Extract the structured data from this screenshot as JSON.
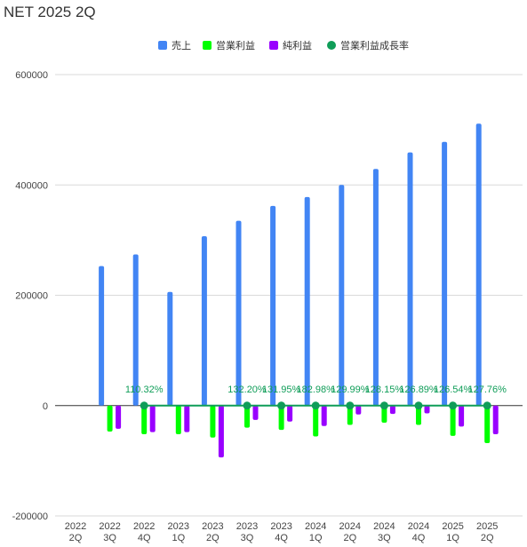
{
  "chart_data": {
    "type": "bar",
    "title": "NET 2025 2Q",
    "categories": [
      [
        "2022",
        "2Q"
      ],
      [
        "2022",
        "3Q"
      ],
      [
        "2022",
        "4Q"
      ],
      [
        "2023",
        "1Q"
      ],
      [
        "2023",
        "2Q"
      ],
      [
        "2023",
        "3Q"
      ],
      [
        "2023",
        "4Q"
      ],
      [
        "2024",
        "1Q"
      ],
      [
        "2024",
        "2Q"
      ],
      [
        "2024",
        "3Q"
      ],
      [
        "2024",
        "4Q"
      ],
      [
        "2025",
        "1Q"
      ],
      [
        "2025",
        "2Q"
      ]
    ],
    "series": [
      {
        "name": "売上",
        "type": "bar",
        "color": "#4285f4",
        "values": [
          null,
          253000,
          274000,
          206000,
          307000,
          335000,
          362000,
          378000,
          400000,
          429000,
          459000,
          478000,
          511000
        ]
      },
      {
        "name": "営業利益",
        "type": "bar",
        "color": "#00ff00",
        "values": [
          null,
          -47000,
          -52000,
          -52000,
          -58000,
          -40000,
          -44000,
          -56000,
          -35000,
          -31000,
          -35000,
          -55000,
          -68000
        ]
      },
      {
        "name": "純利益",
        "type": "bar",
        "color": "#9900ff",
        "values": [
          null,
          -42000,
          -48000,
          -48000,
          -94000,
          -26000,
          -29000,
          -37000,
          -16000,
          -15000,
          -14000,
          -38000,
          -52000
        ]
      },
      {
        "name": "営業利益成長率",
        "type": "line",
        "color": "#0f9d58",
        "values": [
          null,
          null,
          110.32,
          null,
          null,
          132.2,
          131.95,
          182.98,
          129.99,
          128.15,
          126.89,
          126.54,
          127.76
        ],
        "labels": [
          null,
          null,
          "110.32%",
          null,
          null,
          "132.20%",
          "131.95%",
          "182.98%",
          "129.99%",
          "128.15%",
          "126.89%",
          "126.54%",
          "127.76%"
        ]
      }
    ],
    "ylim": [
      -200000,
      600000
    ],
    "yticks": [
      600000,
      400000,
      200000,
      0,
      -200000
    ],
    "grid": true,
    "legend": "top-center"
  }
}
